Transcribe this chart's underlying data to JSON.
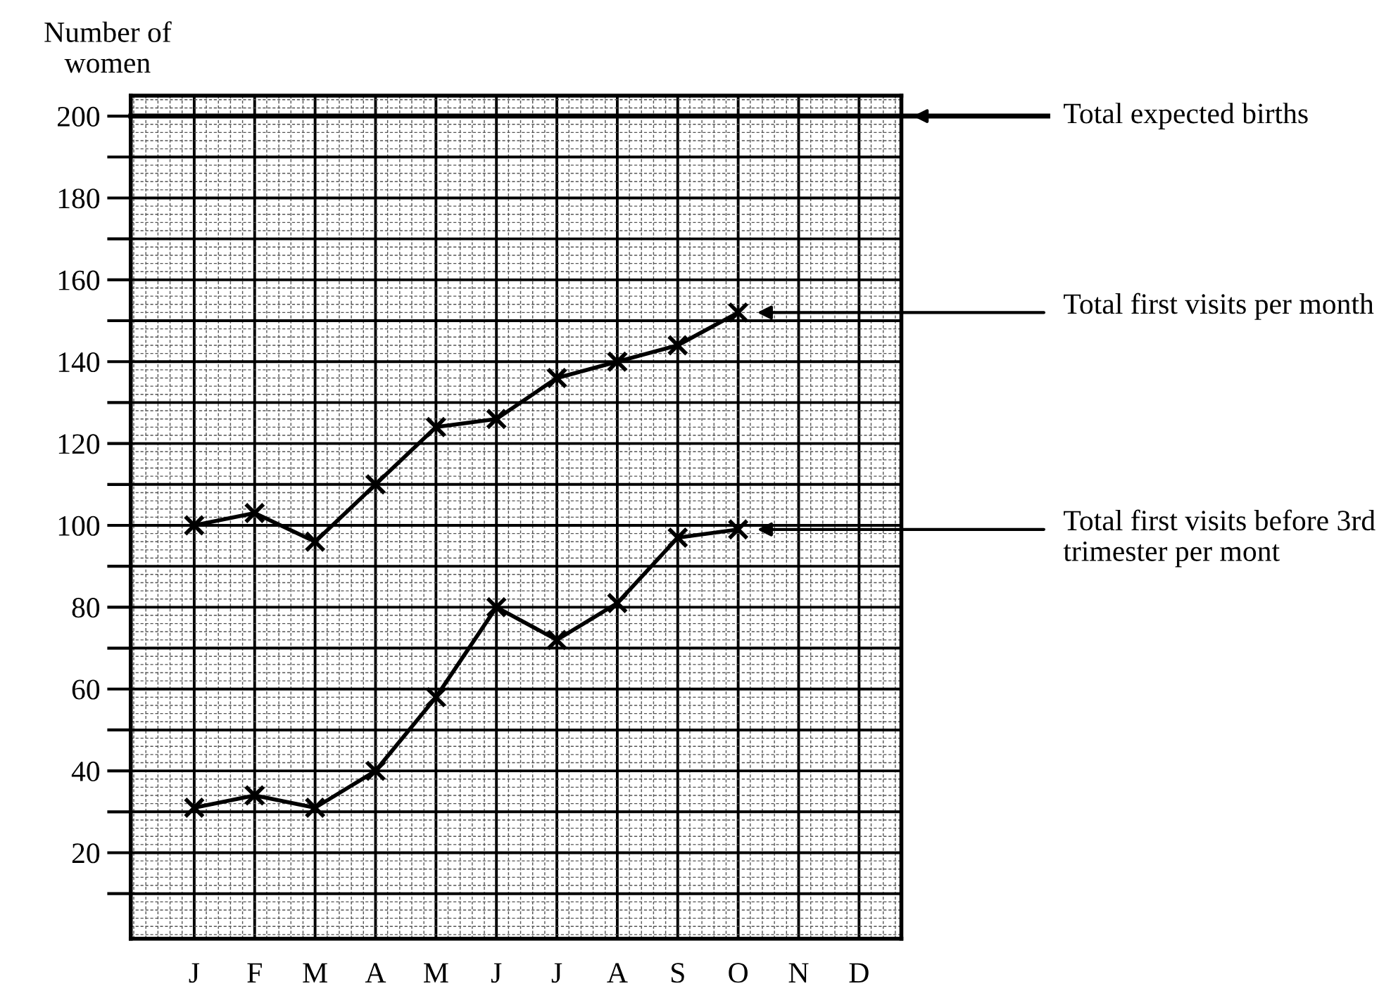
{
  "chart_data": {
    "type": "line",
    "ylabel": "Number of women",
    "categories": [
      "J",
      "F",
      "M",
      "A",
      "M",
      "J",
      "J",
      "A",
      "S",
      "O",
      "N",
      "D"
    ],
    "series": [
      {
        "name": "Total first visits per month",
        "color": "#000000",
        "values": [
          100,
          103,
          96,
          110,
          124,
          126,
          136,
          140,
          144,
          152,
          null,
          null
        ]
      },
      {
        "name": "Total first visits before 3rd trimester per mont",
        "color": "#000000",
        "values": [
          31,
          34,
          31,
          40,
          58,
          80,
          72,
          81,
          97,
          99,
          null,
          null
        ]
      }
    ],
    "ylim": [
      -1,
      205
    ],
    "yticks": [
      {
        "value": 10,
        "label": null
      },
      20,
      {
        "value": 30,
        "label": null
      },
      40,
      {
        "value": 50,
        "label": null
      },
      60,
      {
        "value": 70,
        "label": null
      },
      80,
      {
        "value": 90,
        "label": null
      },
      100,
      {
        "value": 110,
        "label": null
      },
      120,
      {
        "value": 130,
        "label": null
      },
      140,
      {
        "value": 150,
        "label": null
      },
      160,
      {
        "value": 170,
        "label": null
      },
      180,
      {
        "value": 190,
        "label": null
      },
      200
    ],
    "ref_lines": [
      {
        "axis": "y",
        "value": 200,
        "label": "Total expected births",
        "color": "#000000"
      }
    ],
    "grid": true,
    "legend": false,
    "marker": "cross",
    "line_style": "solid"
  }
}
